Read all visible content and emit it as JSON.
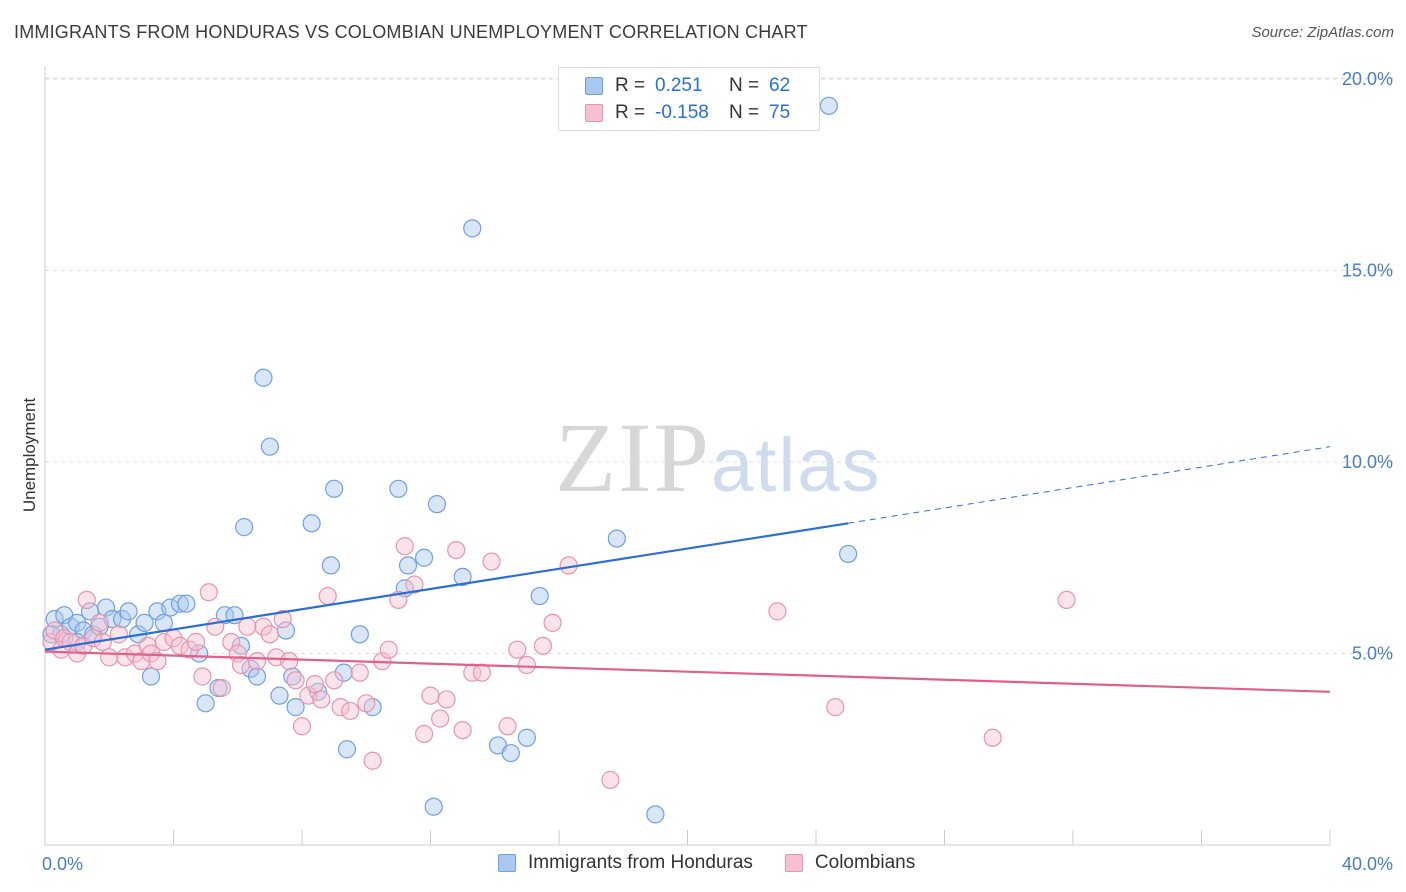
{
  "title": "IMMIGRANTS FROM HONDURAS VS COLOMBIAN UNEMPLOYMENT CORRELATION CHART",
  "source": "Source: ZipAtlas.com",
  "watermark": {
    "zip": "ZIP",
    "atlas": "atlas"
  },
  "legend": {
    "rows": [
      {
        "r_label": "R =",
        "r_value": "0.251",
        "n_label": "N =",
        "n_value": "62",
        "color": "#a9c8f0",
        "border": "#6fa0e0"
      },
      {
        "r_label": "R =",
        "r_value": "-0.158",
        "n_label": "N =",
        "n_value": "75",
        "color": "#f7c0d0",
        "border": "#e894ad"
      }
    ]
  },
  "bottom_legend": [
    {
      "label": "Immigrants from Honduras",
      "color": "#a9c8f0",
      "border": "#6fa0e0"
    },
    {
      "label": "Colombians",
      "color": "#f7c0d0",
      "border": "#e894ad"
    }
  ],
  "chart_data": {
    "type": "scatter",
    "title": "IMMIGRANTS FROM HONDURAS VS COLOMBIAN UNEMPLOYMENT CORRELATION CHART",
    "xlabel": "",
    "ylabel": "Unemployment",
    "xlim": [
      0,
      40
    ],
    "ylim": [
      0,
      20.5
    ],
    "x_tick_labels": [
      "0.0%",
      "40.0%"
    ],
    "y_ticks": [
      5,
      10,
      15,
      20
    ],
    "y_tick_labels": [
      "5.0%",
      "10.0%",
      "15.0%",
      "20.0%"
    ],
    "grid": true,
    "legend_position": "top-center",
    "series": [
      {
        "name": "Immigrants from Honduras",
        "color": "#6fa0e0",
        "fill": "#a9c8f0",
        "trend": {
          "x0": 0,
          "y0": 5.1,
          "x1": 25,
          "y1": 8.4,
          "dash_to_x": 40,
          "dash_to_y": 10.4
        },
        "points": [
          [
            0.3,
            5.9
          ],
          [
            0.5,
            5.5
          ],
          [
            0.6,
            6.0
          ],
          [
            0.8,
            5.7
          ],
          [
            1.0,
            5.8
          ],
          [
            1.2,
            5.6
          ],
          [
            1.4,
            6.1
          ],
          [
            1.5,
            5.5
          ],
          [
            1.7,
            5.7
          ],
          [
            1.9,
            6.2
          ],
          [
            2.1,
            5.9
          ],
          [
            2.4,
            5.9
          ],
          [
            2.6,
            6.1
          ],
          [
            2.9,
            5.5
          ],
          [
            3.1,
            5.8
          ],
          [
            3.3,
            4.4
          ],
          [
            3.5,
            6.1
          ],
          [
            3.7,
            5.8
          ],
          [
            3.9,
            6.2
          ],
          [
            4.2,
            6.3
          ],
          [
            4.4,
            6.3
          ],
          [
            4.8,
            5.0
          ],
          [
            5.0,
            3.7
          ],
          [
            5.4,
            4.1
          ],
          [
            5.6,
            6.0
          ],
          [
            5.9,
            6.0
          ],
          [
            6.1,
            5.2
          ],
          [
            6.2,
            8.3
          ],
          [
            6.4,
            4.6
          ],
          [
            6.6,
            4.4
          ],
          [
            6.8,
            12.2
          ],
          [
            7.0,
            10.4
          ],
          [
            7.3,
            3.9
          ],
          [
            7.5,
            5.6
          ],
          [
            7.7,
            4.4
          ],
          [
            7.8,
            3.6
          ],
          [
            8.3,
            8.4
          ],
          [
            8.5,
            4.0
          ],
          [
            8.9,
            7.3
          ],
          [
            9.0,
            9.3
          ],
          [
            9.3,
            4.5
          ],
          [
            9.4,
            2.5
          ],
          [
            9.8,
            5.5
          ],
          [
            10.2,
            3.6
          ],
          [
            11.0,
            9.3
          ],
          [
            11.2,
            6.7
          ],
          [
            11.3,
            7.3
          ],
          [
            11.8,
            7.5
          ],
          [
            12.2,
            8.9
          ],
          [
            12.1,
            1.0
          ],
          [
            13.0,
            7.0
          ],
          [
            13.3,
            16.1
          ],
          [
            14.1,
            2.6
          ],
          [
            14.5,
            2.4
          ],
          [
            15.0,
            2.8
          ],
          [
            15.4,
            6.5
          ],
          [
            17.8,
            8.0
          ],
          [
            19.0,
            0.8
          ],
          [
            24.4,
            19.3
          ],
          [
            25.0,
            7.6
          ],
          [
            1.0,
            5.3
          ],
          [
            0.2,
            5.5
          ]
        ]
      },
      {
        "name": "Colombians",
        "color": "#e894ad",
        "fill": "#f7c0d0",
        "trend": {
          "x0": 0,
          "y0": 5.05,
          "x1": 40,
          "y1": 4.0
        },
        "points": [
          [
            0.2,
            5.3
          ],
          [
            0.3,
            5.6
          ],
          [
            0.5,
            5.1
          ],
          [
            0.6,
            5.4
          ],
          [
            0.8,
            5.3
          ],
          [
            1.0,
            5.0
          ],
          [
            1.2,
            5.2
          ],
          [
            1.3,
            6.4
          ],
          [
            1.5,
            5.4
          ],
          [
            1.7,
            5.8
          ],
          [
            1.8,
            5.3
          ],
          [
            2.0,
            4.9
          ],
          [
            2.3,
            5.5
          ],
          [
            2.5,
            4.9
          ],
          [
            2.8,
            5.0
          ],
          [
            3.0,
            4.8
          ],
          [
            3.2,
            5.2
          ],
          [
            3.3,
            5.0
          ],
          [
            3.5,
            4.8
          ],
          [
            3.7,
            5.3
          ],
          [
            4.0,
            5.4
          ],
          [
            4.2,
            5.2
          ],
          [
            4.5,
            5.1
          ],
          [
            4.7,
            5.3
          ],
          [
            4.9,
            4.4
          ],
          [
            5.1,
            6.6
          ],
          [
            5.3,
            5.7
          ],
          [
            5.5,
            4.1
          ],
          [
            5.8,
            5.3
          ],
          [
            6.0,
            5.0
          ],
          [
            6.1,
            4.7
          ],
          [
            6.3,
            5.7
          ],
          [
            6.6,
            4.8
          ],
          [
            6.8,
            5.7
          ],
          [
            7.0,
            5.5
          ],
          [
            7.2,
            4.9
          ],
          [
            7.4,
            5.9
          ],
          [
            7.6,
            4.8
          ],
          [
            7.8,
            4.3
          ],
          [
            8.0,
            3.1
          ],
          [
            8.2,
            3.9
          ],
          [
            8.4,
            4.2
          ],
          [
            8.6,
            3.8
          ],
          [
            8.8,
            6.5
          ],
          [
            9.0,
            4.3
          ],
          [
            9.2,
            3.6
          ],
          [
            9.5,
            3.5
          ],
          [
            9.8,
            4.5
          ],
          [
            10.0,
            3.7
          ],
          [
            10.2,
            2.2
          ],
          [
            10.5,
            4.8
          ],
          [
            10.7,
            5.1
          ],
          [
            11.0,
            6.4
          ],
          [
            11.2,
            7.8
          ],
          [
            11.5,
            6.8
          ],
          [
            11.8,
            2.9
          ],
          [
            12.0,
            3.9
          ],
          [
            12.3,
            3.3
          ],
          [
            12.5,
            3.8
          ],
          [
            12.8,
            7.7
          ],
          [
            13.0,
            3.0
          ],
          [
            13.3,
            4.5
          ],
          [
            13.6,
            4.5
          ],
          [
            13.9,
            7.4
          ],
          [
            14.4,
            3.1
          ],
          [
            14.7,
            5.1
          ],
          [
            15.0,
            4.7
          ],
          [
            15.5,
            5.2
          ],
          [
            15.8,
            5.8
          ],
          [
            16.3,
            7.3
          ],
          [
            17.6,
            1.7
          ],
          [
            22.8,
            6.1
          ],
          [
            24.6,
            3.6
          ],
          [
            29.5,
            2.8
          ],
          [
            31.8,
            6.4
          ]
        ]
      }
    ]
  }
}
